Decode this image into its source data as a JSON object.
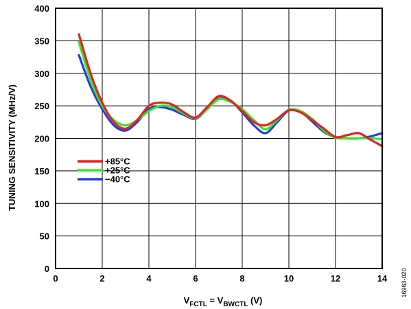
{
  "chart_data": {
    "type": "line",
    "title": "",
    "ylabel": "TUNING SENSITIVITY (MHz/V)",
    "xlabel": {
      "v1": "V",
      "s1": "FCTL",
      "mid": " = V",
      "s2": "BWCTL",
      "tail": " (V)"
    },
    "xlim": [
      0,
      14
    ],
    "ylim": [
      0,
      400
    ],
    "x_ticks": [
      "0",
      "2",
      "4",
      "6",
      "8",
      "10",
      "12",
      "14"
    ],
    "y_ticks": [
      "0",
      "50",
      "100",
      "150",
      "200",
      "250",
      "300",
      "350",
      "400"
    ],
    "grid": true,
    "legend_position": "left-middle",
    "figure_id": "16963-020",
    "series": [
      {
        "name": "+85°C",
        "color": "#e8211d",
        "x": [
          1,
          1.5,
          2,
          2.5,
          3,
          3.5,
          4,
          4.5,
          5,
          5.5,
          6,
          6.5,
          7,
          7.5,
          8,
          8.5,
          9,
          9.5,
          10,
          10.5,
          11,
          11.5,
          12,
          12.5,
          13,
          13.5,
          14
        ],
        "y": [
          360,
          300,
          255,
          225,
          215,
          228,
          250,
          255,
          252,
          240,
          232,
          248,
          265,
          258,
          242,
          225,
          220,
          230,
          243,
          240,
          228,
          215,
          202,
          205,
          208,
          198,
          188
        ]
      },
      {
        "name": "+25°C",
        "color": "#33e82c",
        "x": [
          1,
          1.5,
          2,
          2.5,
          3,
          3.5,
          4,
          4.5,
          5,
          5.5,
          6,
          6.5,
          7,
          7.5,
          8,
          8.5,
          9,
          9.5,
          10,
          10.5,
          11,
          11.5,
          12,
          12.5,
          13,
          13.5,
          14
        ],
        "y": [
          348,
          290,
          250,
          228,
          220,
          228,
          242,
          250,
          248,
          238,
          231,
          245,
          260,
          256,
          245,
          228,
          214,
          228,
          244,
          242,
          230,
          212,
          201,
          200,
          200,
          200,
          199
        ]
      },
      {
        "name": "−40°C",
        "color": "#1f3ee6",
        "x": [
          1,
          1.5,
          2,
          2.5,
          3,
          3.5,
          4,
          4.5,
          5,
          5.5,
          6,
          6.5,
          7,
          7.5,
          8,
          8.5,
          9,
          9.5,
          10,
          10.5,
          11,
          11.5,
          12,
          12.5,
          13,
          13.5,
          14
        ],
        "y": [
          328,
          280,
          245,
          220,
          212,
          225,
          245,
          248,
          244,
          236,
          230,
          245,
          261,
          258,
          240,
          220,
          208,
          225,
          243,
          241,
          226,
          210,
          202,
          200,
          200,
          203,
          208
        ]
      }
    ]
  }
}
